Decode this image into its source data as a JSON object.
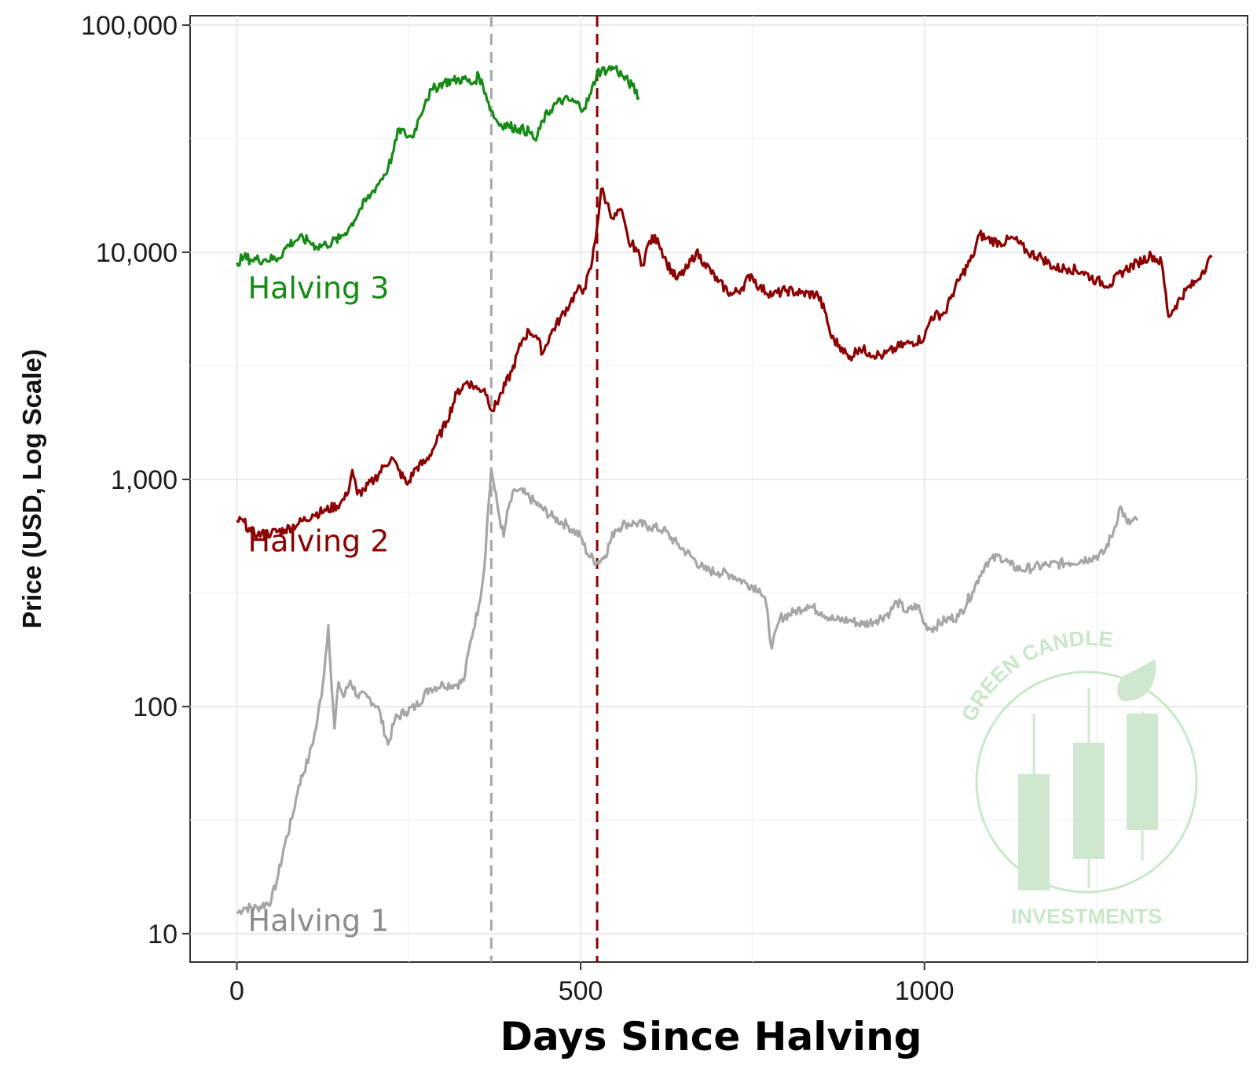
{
  "chart_data": {
    "type": "line",
    "title": "",
    "xlabel": "Days Since Halving",
    "ylabel": "Price (USD, Log Scale)",
    "x_scale": "linear",
    "y_scale": "log",
    "xlim": [
      -68,
      1470
    ],
    "ylim": [
      7.5,
      110000
    ],
    "grid": true,
    "x_ticks": [
      0,
      500,
      1000
    ],
    "x_tick_labels": [
      "0",
      "500",
      "1000"
    ],
    "y_ticks": [
      10,
      100,
      1000,
      10000,
      100000
    ],
    "y_tick_labels": [
      "10",
      "100",
      "1,000",
      "10,000",
      "100,000"
    ],
    "vlines": [
      {
        "x": 370,
        "color": "#a6a6a6",
        "style": "dashed"
      },
      {
        "x": 524,
        "color": "#8b0000",
        "style": "dashed"
      }
    ],
    "series": [
      {
        "name": "Halving 1",
        "color": "#a6a6a6",
        "label_color": "#8c8c8c",
        "points": [
          [
            0,
            12.3
          ],
          [
            10,
            13
          ],
          [
            30,
            13
          ],
          [
            50,
            14
          ],
          [
            60,
            18
          ],
          [
            70,
            25
          ],
          [
            80,
            32
          ],
          [
            90,
            45
          ],
          [
            105,
            60
          ],
          [
            115,
            80
          ],
          [
            125,
            125
          ],
          [
            133,
            228
          ],
          [
            138,
            120
          ],
          [
            142,
            80
          ],
          [
            148,
            128
          ],
          [
            155,
            110
          ],
          [
            165,
            130
          ],
          [
            175,
            112
          ],
          [
            190,
            110
          ],
          [
            205,
            100
          ],
          [
            220,
            68
          ],
          [
            230,
            88
          ],
          [
            245,
            95
          ],
          [
            260,
            100
          ],
          [
            280,
            120
          ],
          [
            300,
            125
          ],
          [
            320,
            125
          ],
          [
            330,
            130
          ],
          [
            340,
            195
          ],
          [
            352,
            280
          ],
          [
            360,
            410
          ],
          [
            364,
            650
          ],
          [
            368,
            900
          ],
          [
            370,
            1120
          ],
          [
            375,
            900
          ],
          [
            382,
            680
          ],
          [
            388,
            560
          ],
          [
            395,
            750
          ],
          [
            405,
            900
          ],
          [
            420,
            860
          ],
          [
            440,
            760
          ],
          [
            460,
            680
          ],
          [
            480,
            630
          ],
          [
            500,
            560
          ],
          [
            510,
            470
          ],
          [
            524,
            430
          ],
          [
            535,
            460
          ],
          [
            550,
            600
          ],
          [
            565,
            640
          ],
          [
            580,
            640
          ],
          [
            600,
            620
          ],
          [
            620,
            600
          ],
          [
            640,
            520
          ],
          [
            660,
            460
          ],
          [
            680,
            400
          ],
          [
            700,
            390
          ],
          [
            720,
            380
          ],
          [
            740,
            350
          ],
          [
            760,
            330
          ],
          [
            770,
            280
          ],
          [
            778,
            180
          ],
          [
            790,
            245
          ],
          [
            810,
            260
          ],
          [
            830,
            280
          ],
          [
            850,
            260
          ],
          [
            870,
            240
          ],
          [
            890,
            240
          ],
          [
            910,
            230
          ],
          [
            930,
            240
          ],
          [
            950,
            260
          ],
          [
            960,
            290
          ],
          [
            975,
            260
          ],
          [
            990,
            280
          ],
          [
            1000,
            230
          ],
          [
            1010,
            220
          ],
          [
            1030,
            240
          ],
          [
            1050,
            250
          ],
          [
            1070,
            320
          ],
          [
            1080,
            375
          ],
          [
            1090,
            430
          ],
          [
            1110,
            460
          ],
          [
            1125,
            420
          ],
          [
            1140,
            400
          ],
          [
            1160,
            410
          ],
          [
            1180,
            420
          ],
          [
            1210,
            430
          ],
          [
            1240,
            450
          ],
          [
            1260,
            470
          ],
          [
            1275,
            590
          ],
          [
            1285,
            760
          ],
          [
            1295,
            640
          ],
          [
            1310,
            660
          ]
        ]
      },
      {
        "name": "Halving 2",
        "color": "#8b0000",
        "label_color": "#8b0000",
        "points": [
          [
            0,
            660
          ],
          [
            10,
            650
          ],
          [
            20,
            590
          ],
          [
            30,
            570
          ],
          [
            50,
            580
          ],
          [
            70,
            600
          ],
          [
            90,
            640
          ],
          [
            110,
            700
          ],
          [
            130,
            730
          ],
          [
            150,
            780
          ],
          [
            160,
            850
          ],
          [
            168,
            1100
          ],
          [
            175,
            860
          ],
          [
            185,
            900
          ],
          [
            200,
            1000
          ],
          [
            215,
            1150
          ],
          [
            225,
            1250
          ],
          [
            235,
            1100
          ],
          [
            248,
            950
          ],
          [
            260,
            1120
          ],
          [
            275,
            1200
          ],
          [
            290,
            1450
          ],
          [
            305,
            1800
          ],
          [
            320,
            2400
          ],
          [
            335,
            2700
          ],
          [
            350,
            2500
          ],
          [
            360,
            2500
          ],
          [
            372,
            2000
          ],
          [
            385,
            2400
          ],
          [
            400,
            3000
          ],
          [
            415,
            4100
          ],
          [
            425,
            4500
          ],
          [
            435,
            4300
          ],
          [
            445,
            3600
          ],
          [
            455,
            4300
          ],
          [
            470,
            5100
          ],
          [
            485,
            6000
          ],
          [
            495,
            6800
          ],
          [
            505,
            6900
          ],
          [
            515,
            8500
          ],
          [
            524,
            13000
          ],
          [
            530,
            19000
          ],
          [
            538,
            16500
          ],
          [
            548,
            14000
          ],
          [
            558,
            15500
          ],
          [
            570,
            11000
          ],
          [
            580,
            10500
          ],
          [
            590,
            8800
          ],
          [
            600,
            11200
          ],
          [
            612,
            11500
          ],
          [
            625,
            9000
          ],
          [
            640,
            7600
          ],
          [
            655,
            8500
          ],
          [
            668,
            10000
          ],
          [
            680,
            9000
          ],
          [
            700,
            7400
          ],
          [
            720,
            6500
          ],
          [
            735,
            7000
          ],
          [
            748,
            8000
          ],
          [
            760,
            7000
          ],
          [
            780,
            6500
          ],
          [
            800,
            6800
          ],
          [
            820,
            6600
          ],
          [
            845,
            6500
          ],
          [
            855,
            5500
          ],
          [
            865,
            4200
          ],
          [
            880,
            3800
          ],
          [
            890,
            3400
          ],
          [
            905,
            3800
          ],
          [
            920,
            3600
          ],
          [
            940,
            3500
          ],
          [
            960,
            3800
          ],
          [
            980,
            4000
          ],
          [
            1000,
            4200
          ],
          [
            1010,
            5200
          ],
          [
            1030,
            5400
          ],
          [
            1040,
            6500
          ],
          [
            1055,
            8000
          ],
          [
            1070,
            9500
          ],
          [
            1080,
            12000
          ],
          [
            1090,
            11500
          ],
          [
            1110,
            11000
          ],
          [
            1130,
            11500
          ],
          [
            1150,
            10000
          ],
          [
            1170,
            9500
          ],
          [
            1190,
            8500
          ],
          [
            1210,
            8500
          ],
          [
            1230,
            8200
          ],
          [
            1250,
            7500
          ],
          [
            1270,
            7200
          ],
          [
            1290,
            8300
          ],
          [
            1310,
            9000
          ],
          [
            1330,
            9700
          ],
          [
            1345,
            9000
          ],
          [
            1355,
            5200
          ],
          [
            1365,
            5800
          ],
          [
            1380,
            6800
          ],
          [
            1395,
            7400
          ],
          [
            1405,
            8300
          ],
          [
            1418,
            9500
          ]
        ]
      },
      {
        "name": "Halving 3",
        "color": "#168a16",
        "label_color": "#168a16",
        "points": [
          [
            0,
            9000
          ],
          [
            10,
            9500
          ],
          [
            20,
            9300
          ],
          [
            40,
            9300
          ],
          [
            60,
            9400
          ],
          [
            75,
            10800
          ],
          [
            90,
            11500
          ],
          [
            105,
            11200
          ],
          [
            115,
            10600
          ],
          [
            130,
            10800
          ],
          [
            150,
            11500
          ],
          [
            165,
            13000
          ],
          [
            180,
            15600
          ],
          [
            195,
            18000
          ],
          [
            210,
            21000
          ],
          [
            220,
            23500
          ],
          [
            228,
            28000
          ],
          [
            236,
            35000
          ],
          [
            245,
            33000
          ],
          [
            255,
            32000
          ],
          [
            265,
            39000
          ],
          [
            275,
            47000
          ],
          [
            285,
            52000
          ],
          [
            300,
            56000
          ],
          [
            315,
            57000
          ],
          [
            330,
            58000
          ],
          [
            342,
            55000
          ],
          [
            352,
            60000
          ],
          [
            362,
            50000
          ],
          [
            370,
            42000
          ],
          [
            380,
            37000
          ],
          [
            395,
            36000
          ],
          [
            410,
            35000
          ],
          [
            425,
            34000
          ],
          [
            435,
            31000
          ],
          [
            445,
            38000
          ],
          [
            460,
            44000
          ],
          [
            475,
            47000
          ],
          [
            490,
            46000
          ],
          [
            505,
            43000
          ],
          [
            515,
            50000
          ],
          [
            524,
            62000
          ],
          [
            540,
            64000
          ],
          [
            550,
            65000
          ],
          [
            560,
            60000
          ],
          [
            575,
            54000
          ],
          [
            585,
            48000
          ]
        ]
      }
    ]
  },
  "watermark": {
    "top_text": "GREEN CANDLE",
    "bottom_text": "INVESTMENTS",
    "color": "#a9d8a9"
  }
}
